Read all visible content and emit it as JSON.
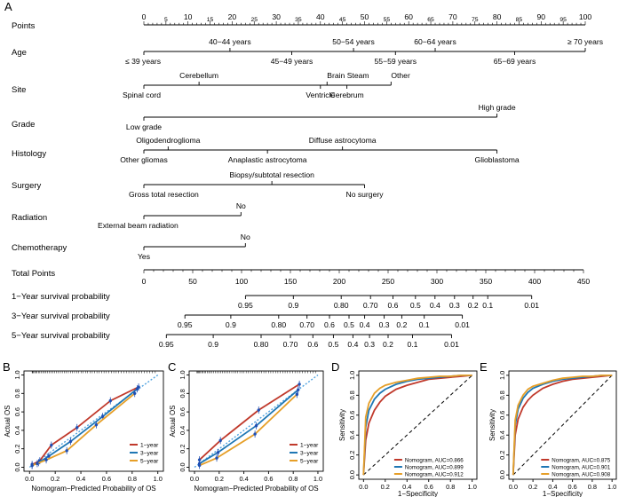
{
  "panel_labels": [
    "A",
    "B",
    "C",
    "D",
    "E"
  ],
  "nomogram": {
    "points": {
      "label": "Points",
      "ticks": [
        "0",
        "10",
        "20",
        "30",
        "40",
        "50",
        "60",
        "70",
        "80",
        "90",
        "100"
      ],
      "minor_ticks": [
        "5",
        "15",
        "25",
        "35",
        "45",
        "55",
        "65",
        "75",
        "85",
        "95"
      ]
    },
    "age": {
      "label": "Age",
      "top": [
        "40−44 years",
        "50−54 years",
        "60−64 years",
        "≥ 70 years"
      ],
      "bottom": [
        "≤ 39 years",
        "45−49 years",
        "55−59 years",
        "65−69 years"
      ]
    },
    "site": {
      "label": "Site",
      "top": [
        "Cerebellum",
        "Brain Steam",
        "Other"
      ],
      "bottom": [
        "Spinal cord",
        "Ventricle",
        "Cerebrum"
      ]
    },
    "grade": {
      "label": "Grade",
      "top": [
        "High grade"
      ],
      "bottom": [
        "Low grade"
      ]
    },
    "histology": {
      "label": "Histology",
      "top": [
        "Oligodendroglioma",
        "Diffuse astrocytoma"
      ],
      "bottom": [
        "Other gliomas",
        "Anaplastic astrocytoma",
        "Glioblastoma"
      ]
    },
    "surgery": {
      "label": "Surgery",
      "top": [
        "Biopsy/subtotal resection"
      ],
      "bottom": [
        "Gross total resection",
        "No surgery"
      ]
    },
    "radiation": {
      "label": "Radiation",
      "top": [
        "No"
      ],
      "bottom": [
        "External beam radiation"
      ]
    },
    "chemotherapy": {
      "label": "Chemotherapy",
      "top": [
        "No"
      ],
      "bottom": [
        "Yes"
      ]
    },
    "total_points": {
      "label": "Total Points",
      "ticks": [
        "0",
        "50",
        "100",
        "150",
        "200",
        "250",
        "300",
        "350",
        "400",
        "450"
      ]
    },
    "surv1": {
      "label": "1−Year survival probability",
      "ticks": [
        "0.95",
        "0.9",
        "0.80",
        "0.70",
        "0.6",
        "0.5",
        "0.4",
        "0.3",
        "0.2",
        "0.1",
        "0.01"
      ]
    },
    "surv3": {
      "label": "3−Year survival probability",
      "ticks": [
        "0.95",
        "0.9",
        "0.80",
        "0.70",
        "0.6",
        "0.5",
        "0.4",
        "0.3",
        "0.2",
        "0.1",
        "0.01"
      ]
    },
    "surv5": {
      "label": "5−Year survival probability",
      "ticks": [
        "0.95",
        "0.9",
        "0.80",
        "0.70",
        "0.6",
        "0.5",
        "0.4",
        "0.3",
        "0.2",
        "0.1",
        "0.01"
      ]
    }
  },
  "chart_data": [
    {
      "panel": "B",
      "type": "line",
      "xlabel": "Nomogram−Predicted Probability of OS",
      "ylabel": "Actual OS",
      "xlim": [
        0,
        1
      ],
      "ylim": [
        0,
        1
      ],
      "x_ticks": [
        "0.0",
        "0.2",
        "0.4",
        "0.6",
        "0.8",
        "1.0"
      ],
      "y_ticks": [
        "0.0",
        "0.2",
        "0.4",
        "0.6",
        "0.8",
        "1.0"
      ],
      "legend": [
        "1−year",
        "3−year",
        "5−year"
      ],
      "legend_position": "bottom-right",
      "series": [
        {
          "name": "1−year",
          "color": "#c0392b",
          "x": [
            0.02,
            0.08,
            0.17,
            0.37,
            0.63,
            0.85
          ],
          "y": [
            0.03,
            0.07,
            0.24,
            0.43,
            0.72,
            0.87
          ]
        },
        {
          "name": "3−year",
          "color": "#1f77b4",
          "x": [
            0.02,
            0.07,
            0.15,
            0.32,
            0.57,
            0.84
          ],
          "y": [
            0.02,
            0.05,
            0.12,
            0.28,
            0.55,
            0.85
          ]
        },
        {
          "name": "5−year",
          "color": "#e69f28",
          "x": [
            0.02,
            0.06,
            0.13,
            0.29,
            0.52,
            0.82
          ],
          "y": [
            0.02,
            0.04,
            0.08,
            0.18,
            0.46,
            0.8
          ]
        }
      ]
    },
    {
      "panel": "C",
      "type": "line",
      "xlabel": "Nomogram−Predicted Probability of OS",
      "ylabel": "Actual OS",
      "xlim": [
        0,
        1
      ],
      "ylim": [
        0,
        1
      ],
      "x_ticks": [
        "0.0",
        "0.2",
        "0.4",
        "0.6",
        "0.8",
        "1.0"
      ],
      "y_ticks": [
        "0.0",
        "0.2",
        "0.4",
        "0.6",
        "0.8",
        "1.0"
      ],
      "legend": [
        "1−year",
        "3−year",
        "5−year"
      ],
      "legend_position": "bottom-right",
      "series": [
        {
          "name": "1−year",
          "color": "#c0392b",
          "x": [
            0.04,
            0.21,
            0.52,
            0.85
          ],
          "y": [
            0.08,
            0.29,
            0.62,
            0.9
          ]
        },
        {
          "name": "3−year",
          "color": "#1f77b4",
          "x": [
            0.04,
            0.19,
            0.5,
            0.84
          ],
          "y": [
            0.04,
            0.16,
            0.45,
            0.84
          ]
        },
        {
          "name": "5−year",
          "color": "#e69f28",
          "x": [
            0.04,
            0.18,
            0.49,
            0.83
          ],
          "y": [
            0.02,
            0.1,
            0.36,
            0.79
          ]
        }
      ]
    },
    {
      "panel": "D",
      "type": "line",
      "xlabel": "1−Specificity",
      "ylabel": "Sensitivity",
      "xlim": [
        0,
        1
      ],
      "ylim": [
        0,
        1
      ],
      "x_ticks": [
        "0.0",
        "0.2",
        "0.4",
        "0.6",
        "0.8",
        "1.0"
      ],
      "y_ticks": [
        "0.0",
        "0.2",
        "0.4",
        "0.6",
        "0.8",
        "1.0"
      ],
      "legend": [
        "Nomogram, AUC=0.866",
        "Nomogram, AUC=0.899",
        "Nomogram, AUC=0.912"
      ],
      "legend_position": "bottom-right",
      "series": [
        {
          "name": "Nomogram, AUC=0.866",
          "color": "#c0392b",
          "x": [
            0,
            0.02,
            0.05,
            0.1,
            0.15,
            0.2,
            0.3,
            0.4,
            0.5,
            0.6,
            0.7,
            0.8,
            0.9,
            1
          ],
          "y": [
            0,
            0.35,
            0.52,
            0.65,
            0.73,
            0.79,
            0.86,
            0.9,
            0.93,
            0.96,
            0.97,
            0.98,
            0.99,
            1
          ]
        },
        {
          "name": "Nomogram, AUC=0.899",
          "color": "#1f77b4",
          "x": [
            0,
            0.02,
            0.05,
            0.1,
            0.15,
            0.2,
            0.3,
            0.4,
            0.5,
            0.6,
            0.7,
            0.8,
            0.9,
            1
          ],
          "y": [
            0,
            0.48,
            0.65,
            0.76,
            0.82,
            0.86,
            0.91,
            0.94,
            0.96,
            0.97,
            0.98,
            0.99,
            1,
            1
          ]
        },
        {
          "name": "Nomogram, AUC=0.912",
          "color": "#e69f28",
          "x": [
            0,
            0.02,
            0.05,
            0.1,
            0.15,
            0.2,
            0.3,
            0.4,
            0.5,
            0.6,
            0.7,
            0.8,
            0.9,
            1
          ],
          "y": [
            0,
            0.58,
            0.72,
            0.82,
            0.87,
            0.9,
            0.93,
            0.95,
            0.97,
            0.98,
            0.99,
            0.99,
            1,
            1
          ]
        }
      ]
    },
    {
      "panel": "E",
      "type": "line",
      "xlabel": "1−Specificity",
      "ylabel": "Sensitivity",
      "xlim": [
        0,
        1
      ],
      "ylim": [
        0,
        1
      ],
      "x_ticks": [
        "0.0",
        "0.2",
        "0.4",
        "0.6",
        "0.8",
        "1.0"
      ],
      "y_ticks": [
        "0.0",
        "0.2",
        "0.4",
        "0.6",
        "0.8",
        "1.0"
      ],
      "legend": [
        "Nomogram, AUC=0.875",
        "Nomogram, AUC=0.901",
        "Nomogram, AUC=0.908"
      ],
      "legend_position": "bottom-right",
      "series": [
        {
          "name": "Nomogram, AUC=0.875",
          "color": "#c0392b",
          "x": [
            0,
            0.02,
            0.05,
            0.1,
            0.15,
            0.2,
            0.3,
            0.4,
            0.5,
            0.6,
            0.7,
            0.8,
            0.9,
            1
          ],
          "y": [
            0,
            0.4,
            0.56,
            0.68,
            0.75,
            0.8,
            0.87,
            0.91,
            0.94,
            0.96,
            0.97,
            0.98,
            0.99,
            1
          ]
        },
        {
          "name": "Nomogram, AUC=0.901",
          "color": "#1f77b4",
          "x": [
            0,
            0.02,
            0.05,
            0.1,
            0.15,
            0.2,
            0.3,
            0.4,
            0.5,
            0.6,
            0.7,
            0.8,
            0.9,
            1
          ],
          "y": [
            0,
            0.5,
            0.66,
            0.77,
            0.83,
            0.87,
            0.91,
            0.94,
            0.96,
            0.97,
            0.98,
            0.99,
            1,
            1
          ]
        },
        {
          "name": "Nomogram, AUC=0.908",
          "color": "#e69f28",
          "x": [
            0,
            0.02,
            0.05,
            0.1,
            0.15,
            0.2,
            0.3,
            0.4,
            0.5,
            0.6,
            0.7,
            0.8,
            0.9,
            1
          ],
          "y": [
            0,
            0.55,
            0.7,
            0.8,
            0.86,
            0.89,
            0.92,
            0.95,
            0.97,
            0.98,
            0.99,
            0.99,
            1,
            1
          ]
        }
      ]
    }
  ]
}
